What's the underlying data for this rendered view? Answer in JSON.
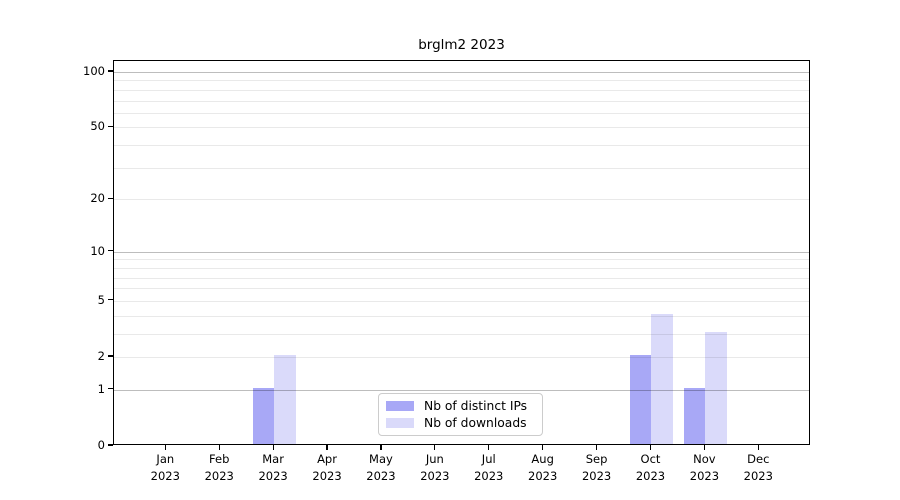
{
  "chart_data": {
    "type": "bar",
    "title": "brglm2 2023",
    "categories": [
      "Jan",
      "Feb",
      "Mar",
      "Apr",
      "May",
      "Jun",
      "Jul",
      "Aug",
      "Sep",
      "Oct",
      "Nov",
      "Dec"
    ],
    "year_label": "2023",
    "series": [
      {
        "name": "Nb of distinct IPs",
        "color": "#a8a8f6",
        "values": [
          0,
          0,
          1,
          0,
          0,
          0,
          0,
          0,
          0,
          2,
          1,
          0
        ]
      },
      {
        "name": "Nb of downloads",
        "color": "#dadafa",
        "values": [
          0,
          0,
          2,
          0,
          0,
          0,
          0,
          0,
          0,
          4,
          3,
          0
        ]
      }
    ],
    "xlabel": "",
    "ylabel": "",
    "yscale": "log1p",
    "ylim": [
      0,
      115
    ],
    "y_tick_labels": [
      0,
      1,
      2,
      5,
      10,
      20,
      50,
      100
    ],
    "y_major_gridlines": [
      1,
      10,
      100
    ],
    "y_minor_gridlines": [
      2,
      3,
      4,
      5,
      6,
      7,
      8,
      9,
      20,
      30,
      40,
      50,
      60,
      70,
      80,
      90
    ],
    "grid": "horizontal, drawn over bars",
    "legend_position": "lower center inside plot"
  }
}
